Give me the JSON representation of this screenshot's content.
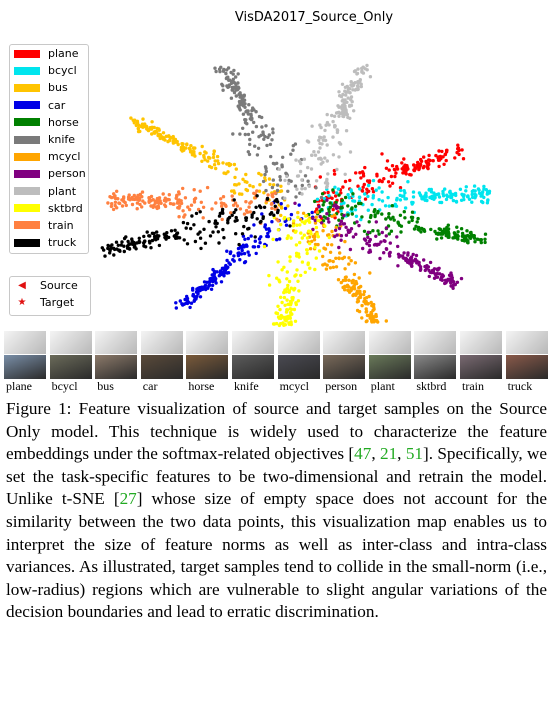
{
  "chart_data": {
    "type": "scatter",
    "title": "VisDA2017_Source_Only",
    "xlabel": "",
    "ylabel": "",
    "grid": false,
    "legend_placement": "top-left",
    "classes": [
      {
        "name": "plane",
        "color": "#ff0000",
        "angle": -25
      },
      {
        "name": "bcycl",
        "color": "#00e5ee",
        "angle": -5
      },
      {
        "name": "bus",
        "color": "#ffc400",
        "angle": -145
      },
      {
        "name": "car",
        "color": "#0000e6",
        "angle": 130
      },
      {
        "name": "horse",
        "color": "#008000",
        "angle": 15
      },
      {
        "name": "knife",
        "color": "#7a7a7a",
        "angle": -112
      },
      {
        "name": "mcycl",
        "color": "#ffa500",
        "angle": 65
      },
      {
        "name": "person",
        "color": "#800080",
        "angle": 35
      },
      {
        "name": "plant",
        "color": "#bdbdbd",
        "angle": -72
      },
      {
        "name": "sktbrd",
        "color": "#ffff00",
        "angle": 95
      },
      {
        "name": "train",
        "color": "#ff8040",
        "angle": -178
      },
      {
        "name": "truck",
        "color": "#000000",
        "angle": 162
      }
    ],
    "markers": [
      {
        "name": "Source",
        "symbol": "◀"
      },
      {
        "name": "Target",
        "symbol": "★"
      }
    ]
  },
  "strip": {
    "labels": [
      "plane",
      "bcycl",
      "bus",
      "car",
      "horse",
      "knife",
      "mcycl",
      "person",
      "plant",
      "sktbrd",
      "train",
      "truck"
    ]
  },
  "caption": {
    "p1": "Figure 1:  Feature visualization of source and target samples on the Source Only model.  This technique is widely used to characterize the feature embeddings under the softmax-related objectives [",
    "c1": "47",
    "s1": ", ",
    "c2": "21",
    "s2": ", ",
    "c3": "51",
    "p2": "].  Specifically, we set the task-specific features to be two-dimensional and retrain the model.  Unlike t-SNE [",
    "c4": "27",
    "p3": "] whose size of empty space does not account for the similarity between the two data points, this visualization map enables us to interpret the size of feature norms as well as inter-class and intra-class variances.  As illustrated, target samples tend to collide in the small-norm (i.e., low-radius) regions which are vulnerable to slight angular variations of the decision boundaries and lead to erratic discrimination."
  }
}
